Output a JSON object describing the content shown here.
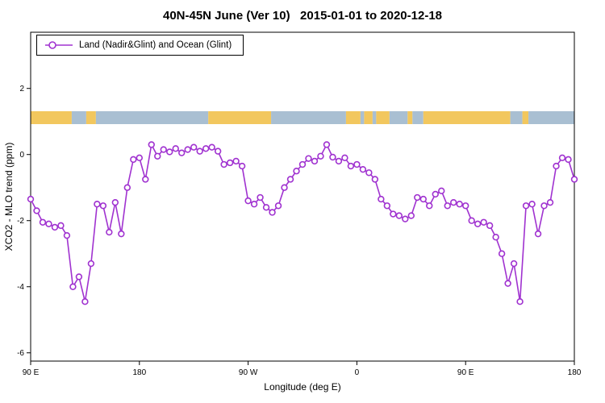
{
  "title": "40N-45N June (Ver 10)   2015-01-01 to 2020-12-18",
  "legend": {
    "label": "Land (Nadir&Glint) and Ocean (Glint)"
  },
  "chart_data": {
    "type": "line",
    "title": "40N-45N June (Ver 10)   2015-01-01 to 2020-12-18",
    "xlabel": "Longitude (deg E)",
    "ylabel": "XCO2 - MLO trend (ppm)",
    "xlim": [
      90,
      540
    ],
    "ylim": [
      -6.25,
      3.7
    ],
    "grid": false,
    "legend_position": "top-left",
    "x_ticks": [
      {
        "value": 90,
        "label": "90 E"
      },
      {
        "value": 180,
        "label": "180"
      },
      {
        "value": 270,
        "label": "90 W"
      },
      {
        "value": 360,
        "label": "0"
      },
      {
        "value": 450,
        "label": "90 E"
      },
      {
        "value": 540,
        "label": "180"
      }
    ],
    "y_ticks": [
      {
        "value": 2,
        "label": "2"
      },
      {
        "value": 0,
        "label": "0"
      },
      {
        "value": -2,
        "label": "-2"
      },
      {
        "value": -4,
        "label": "-4"
      },
      {
        "value": -6,
        "label": "-6"
      }
    ],
    "series": [
      {
        "name": "Land (Nadir&Glint) and Ocean (Glint)",
        "color": "#A032D0",
        "marker": "open-circle",
        "x": [
          90,
          95,
          100,
          105,
          110,
          115,
          120,
          125,
          130,
          135,
          140,
          145,
          150,
          155,
          160,
          165,
          170,
          175,
          180,
          185,
          190,
          195,
          200,
          205,
          210,
          215,
          220,
          225,
          230,
          235,
          240,
          245,
          250,
          255,
          260,
          265,
          270,
          275,
          280,
          285,
          290,
          295,
          300,
          305,
          310,
          315,
          320,
          325,
          330,
          335,
          340,
          345,
          350,
          355,
          360,
          365,
          370,
          375,
          380,
          385,
          390,
          395,
          400,
          405,
          410,
          415,
          420,
          425,
          430,
          435,
          440,
          445,
          450,
          455,
          460,
          465,
          470,
          475,
          480,
          485,
          490,
          495,
          500,
          505,
          510,
          515,
          520,
          525,
          530,
          535,
          540
        ],
        "y": [
          -1.35,
          -1.7,
          -2.05,
          -2.1,
          -2.2,
          -2.15,
          -2.45,
          -4.0,
          -3.7,
          -4.45,
          -3.3,
          -1.5,
          -1.55,
          -2.35,
          -1.45,
          -2.4,
          -1.0,
          -0.15,
          -0.1,
          -0.75,
          0.3,
          -0.05,
          0.15,
          0.08,
          0.18,
          0.05,
          0.15,
          0.22,
          0.1,
          0.18,
          0.22,
          0.1,
          -0.3,
          -0.25,
          -0.2,
          -0.35,
          -1.4,
          -1.5,
          -1.3,
          -1.6,
          -1.75,
          -1.55,
          -1.0,
          -0.75,
          -0.5,
          -0.3,
          -0.12,
          -0.2,
          -0.05,
          0.3,
          -0.08,
          -0.2,
          -0.1,
          -0.35,
          -0.3,
          -0.45,
          -0.55,
          -0.75,
          -1.35,
          -1.55,
          -1.8,
          -1.85,
          -1.95,
          -1.85,
          -1.3,
          -1.35,
          -1.55,
          -1.2,
          -1.1,
          -1.55,
          -1.45,
          -1.5,
          -1.55,
          -2.0,
          -2.1,
          -2.05,
          -2.15,
          -2.5,
          -3.0,
          -3.9,
          -3.3,
          -4.45,
          -1.55,
          -1.5,
          -2.4,
          -1.55,
          -1.45,
          -0.35,
          -0.1,
          -0.15,
          -0.75
        ]
      }
    ],
    "map_strip": {
      "description": "land/ocean band for 40N-45N plotted across longitude",
      "y_top": 1.31,
      "y_bottom": 0.92,
      "land_color": "#F2C75E",
      "ocean_color": "#A9BFD2",
      "segments": [
        {
          "from": 90,
          "to": 124,
          "type": "land"
        },
        {
          "from": 124,
          "to": 136,
          "type": "ocean"
        },
        {
          "from": 136,
          "to": 144,
          "type": "land"
        },
        {
          "from": 144,
          "to": 237,
          "type": "ocean"
        },
        {
          "from": 237,
          "to": 289,
          "type": "land"
        },
        {
          "from": 289,
          "to": 351,
          "type": "ocean"
        },
        {
          "from": 351,
          "to": 363,
          "type": "land"
        },
        {
          "from": 363,
          "to": 366,
          "type": "ocean"
        },
        {
          "from": 366,
          "to": 373,
          "type": "land"
        },
        {
          "from": 373,
          "to": 376,
          "type": "ocean"
        },
        {
          "from": 376,
          "to": 387,
          "type": "land"
        },
        {
          "from": 387,
          "to": 402,
          "type": "ocean"
        },
        {
          "from": 402,
          "to": 406,
          "type": "land"
        },
        {
          "from": 406,
          "to": 415,
          "type": "ocean"
        },
        {
          "from": 415,
          "to": 487,
          "type": "land"
        },
        {
          "from": 487,
          "to": 497,
          "type": "ocean"
        },
        {
          "from": 497,
          "to": 502,
          "type": "land"
        },
        {
          "from": 502,
          "to": 540,
          "type": "ocean"
        }
      ]
    }
  }
}
